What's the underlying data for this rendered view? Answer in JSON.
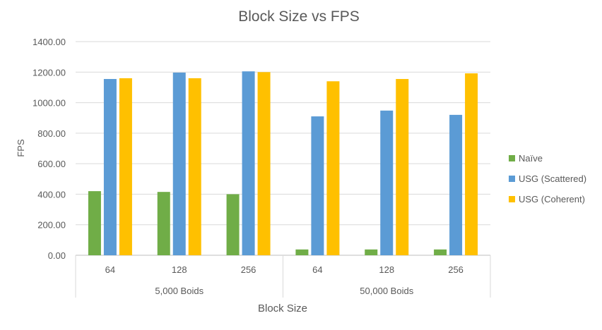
{
  "chart_data": {
    "type": "bar",
    "title": "Block Size vs FPS",
    "xlabel": "Block Size",
    "ylabel": "FPS",
    "ylim": [
      0,
      1400
    ],
    "yticks": [
      "0.00",
      "200.00",
      "400.00",
      "600.00",
      "800.00",
      "1000.00",
      "1200.00",
      "1400.00"
    ],
    "grid": true,
    "legend_position": "right",
    "groups": [
      {
        "label": "5,000 Boids",
        "categories": [
          "64",
          "128",
          "256"
        ]
      },
      {
        "label": "50,000 Boids",
        "categories": [
          "64",
          "128",
          "256"
        ]
      }
    ],
    "categories": [
      "64",
      "128",
      "256",
      "64",
      "128",
      "256"
    ],
    "series": [
      {
        "name": "Naïve",
        "color": "#70ad47",
        "values": [
          420,
          415,
          400,
          38,
          38,
          38
        ]
      },
      {
        "name": "USG (Scattered)",
        "color": "#5b9bd5",
        "values": [
          1155,
          1197,
          1205,
          910,
          948,
          920
        ]
      },
      {
        "name": "USG (Coherent)",
        "color": "#ffc000",
        "values": [
          1160,
          1160,
          1200,
          1140,
          1155,
          1192
        ]
      }
    ]
  }
}
